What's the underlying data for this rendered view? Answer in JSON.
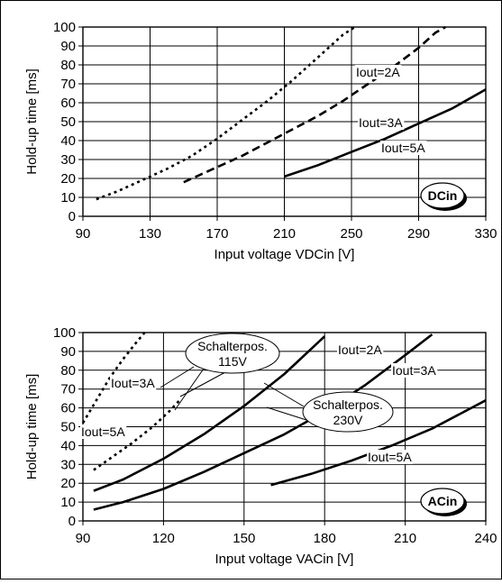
{
  "chart_data": [
    {
      "type": "line",
      "xlabel": "Input voltage VDCin [V]",
      "ylabel": "Hold-up time [ms]",
      "xlim": [
        90,
        330
      ],
      "ylim": [
        0,
        100
      ],
      "x_ticks": [
        90,
        130,
        170,
        210,
        250,
        290,
        330
      ],
      "y_ticks": [
        0,
        10,
        20,
        30,
        40,
        50,
        60,
        70,
        80,
        90,
        100
      ],
      "grid": true,
      "badge": "DCin",
      "series": [
        {
          "name": "Iout=2A",
          "style": "dotted",
          "x": [
            98,
            110,
            125,
            140,
            155,
            170,
            185,
            200,
            215,
            230,
            245,
            252
          ],
          "y": [
            9,
            13,
            19,
            25,
            32,
            41,
            51,
            61,
            72,
            84,
            96,
            100
          ]
        },
        {
          "name": "Iout=3A",
          "style": "dashed",
          "x": [
            150,
            160,
            170,
            185,
            200,
            215,
            230,
            245,
            260,
            275,
            290,
            300,
            306
          ],
          "y": [
            18,
            22,
            26,
            32,
            39,
            46,
            53,
            61,
            70,
            79,
            89,
            97,
            100
          ]
        },
        {
          "name": "Iout=5A",
          "style": "solid",
          "x": [
            210,
            230,
            250,
            270,
            290,
            310,
            330
          ],
          "y": [
            21,
            27,
            34,
            41,
            49,
            57,
            67
          ]
        }
      ]
    },
    {
      "type": "line",
      "xlabel": "Input voltage VACin [V]",
      "ylabel": "Hold-up time [ms]",
      "xlim": [
        90,
        240
      ],
      "ylim": [
        0,
        100
      ],
      "x_ticks": [
        90,
        120,
        150,
        180,
        210,
        240
      ],
      "y_ticks": [
        0,
        10,
        20,
        30,
        40,
        50,
        60,
        70,
        80,
        90,
        100
      ],
      "grid": true,
      "badge": "ACin",
      "callouts": [
        {
          "lines": [
            "Schalterpos.",
            "115V"
          ]
        },
        {
          "lines": [
            "Schalterpos.",
            "230V"
          ]
        }
      ],
      "series": [
        {
          "name": "Iout=3A",
          "group": "Schalterpos. 115V",
          "style": "dotted",
          "x": [
            90,
            95,
            100,
            105,
            110,
            113
          ],
          "y": [
            52,
            64,
            76,
            86,
            95,
            100
          ]
        },
        {
          "name": "Iout=5A",
          "group": "Schalterpos. 115V",
          "style": "dotted",
          "x": [
            94,
            100,
            108,
            116,
            122,
            126
          ],
          "y": [
            27,
            33,
            41,
            50,
            58,
            64
          ]
        },
        {
          "name": "Iout=2A",
          "group": "Schalterpos. 230V",
          "style": "solid",
          "x": [
            94,
            105,
            120,
            135,
            150,
            165,
            180
          ],
          "y": [
            16,
            22,
            33,
            46,
            61,
            78,
            98
          ]
        },
        {
          "name": "Iout=3A",
          "group": "Schalterpos. 230V",
          "style": "solid",
          "x": [
            94,
            105,
            120,
            135,
            150,
            165,
            180,
            195,
            210,
            220
          ],
          "y": [
            6,
            10,
            17,
            26,
            36,
            46,
            58,
            72,
            88,
            99
          ]
        },
        {
          "name": "Iout=5A",
          "group": "Schalterpos. 230V",
          "style": "solid",
          "x": [
            160,
            175,
            190,
            205,
            220,
            240
          ],
          "y": [
            19,
            25,
            32,
            40,
            49,
            64
          ]
        }
      ]
    }
  ]
}
